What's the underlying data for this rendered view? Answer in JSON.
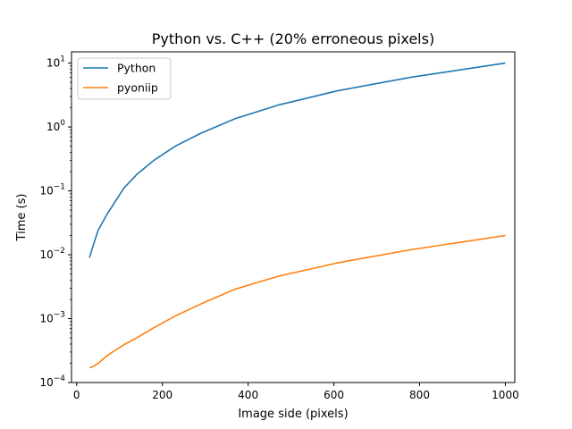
{
  "chart_data": {
    "type": "line",
    "title": "Python vs. C++ (20% erroneous pixels)",
    "xlabel": "Image side (pixels)",
    "ylabel": "Time (s)",
    "xlim": [
      -12,
      1022
    ],
    "ylim": [
      0.0001,
      15
    ],
    "yscale": "log",
    "grid": false,
    "legend_position": "top-left",
    "x_ticks": [
      0,
      200,
      400,
      600,
      800,
      1000
    ],
    "x_tick_labels": [
      "0",
      "200",
      "400",
      "600",
      "800",
      "1000"
    ],
    "y_ticks": [
      0.0001,
      0.001,
      0.01,
      0.1,
      1,
      10
    ],
    "y_tick_labels": [
      {
        "base": "10",
        "exp": "−4"
      },
      {
        "base": "10",
        "exp": "−3"
      },
      {
        "base": "10",
        "exp": "−2"
      },
      {
        "base": "10",
        "exp": "−1"
      },
      {
        "base": "10",
        "exp": "0"
      },
      {
        "base": "10",
        "exp": "1"
      }
    ],
    "series": [
      {
        "name": "Python",
        "color": "#1f77b4",
        "x": [
          30,
          40,
          50,
          70,
          90,
          110,
          140,
          180,
          230,
          290,
          370,
          470,
          610,
          780,
          1000
        ],
        "y": [
          0.009,
          0.015,
          0.024,
          0.042,
          0.068,
          0.11,
          0.18,
          0.3,
          0.5,
          0.8,
          1.35,
          2.2,
          3.7,
          6.0,
          10.0
        ]
      },
      {
        "name": "pyoniip",
        "color": "#ff7f0e",
        "x": [
          30,
          40,
          50,
          70,
          90,
          110,
          140,
          180,
          230,
          290,
          370,
          470,
          610,
          780,
          1000
        ],
        "y": [
          0.00017,
          0.00018,
          0.0002,
          0.00026,
          0.00032,
          0.00039,
          0.0005,
          0.00072,
          0.0011,
          0.0017,
          0.0029,
          0.0046,
          0.0075,
          0.012,
          0.02
        ]
      }
    ]
  }
}
